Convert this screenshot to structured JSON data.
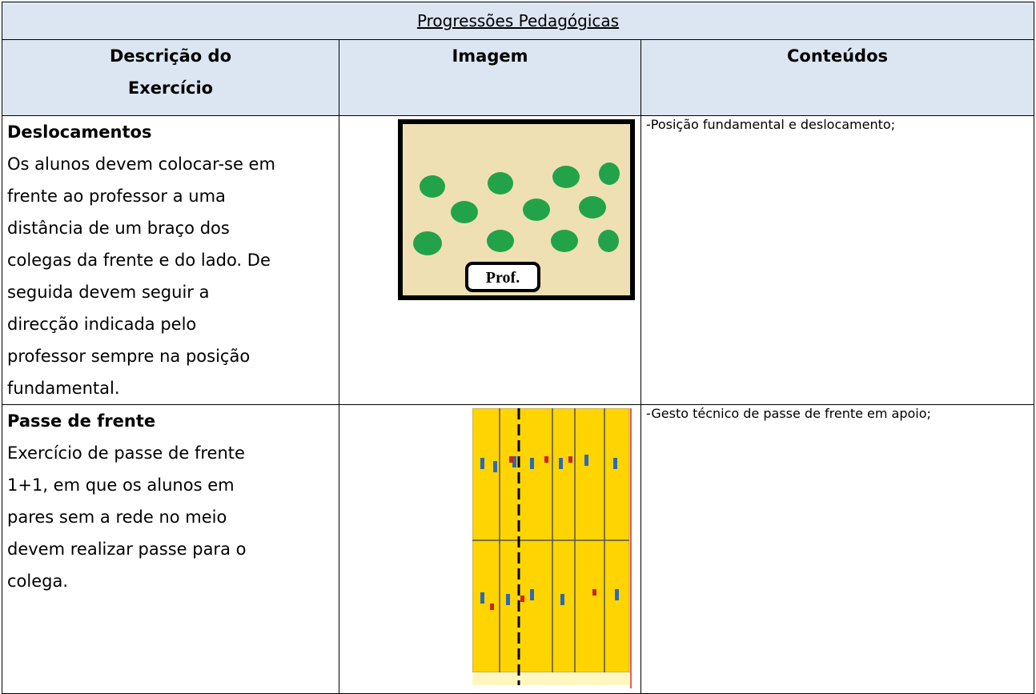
{
  "header": {
    "title": "Progressões Pedagógicas"
  },
  "table": {
    "columns": [
      [
        "Descrição do",
        "Exercício"
      ],
      "Imagem",
      "Conteúdos"
    ],
    "rows": [
      {
        "title": "Deslocamentos",
        "lines": [
          "Os alunos devem colocar-se em",
          "frente ao professor a uma",
          "distância de um braço dos",
          "colegas da frente e do lado. De",
          "seguida devem seguir a",
          "direcção indicada pelo",
          "professor sempre na posição",
          "fundamental."
        ],
        "content": "-Posição fundamental e deslocamento;"
      },
      {
        "title": "Passe de frente",
        "lines": [
          "Exercício de passe de frente",
          "1+1, em que os alunos em",
          "pares sem a rede no meio",
          "devem realizar passe para o",
          "colega."
        ],
        "content": "-Gesto técnico de passe de frente em apoio;"
      }
    ]
  }
}
